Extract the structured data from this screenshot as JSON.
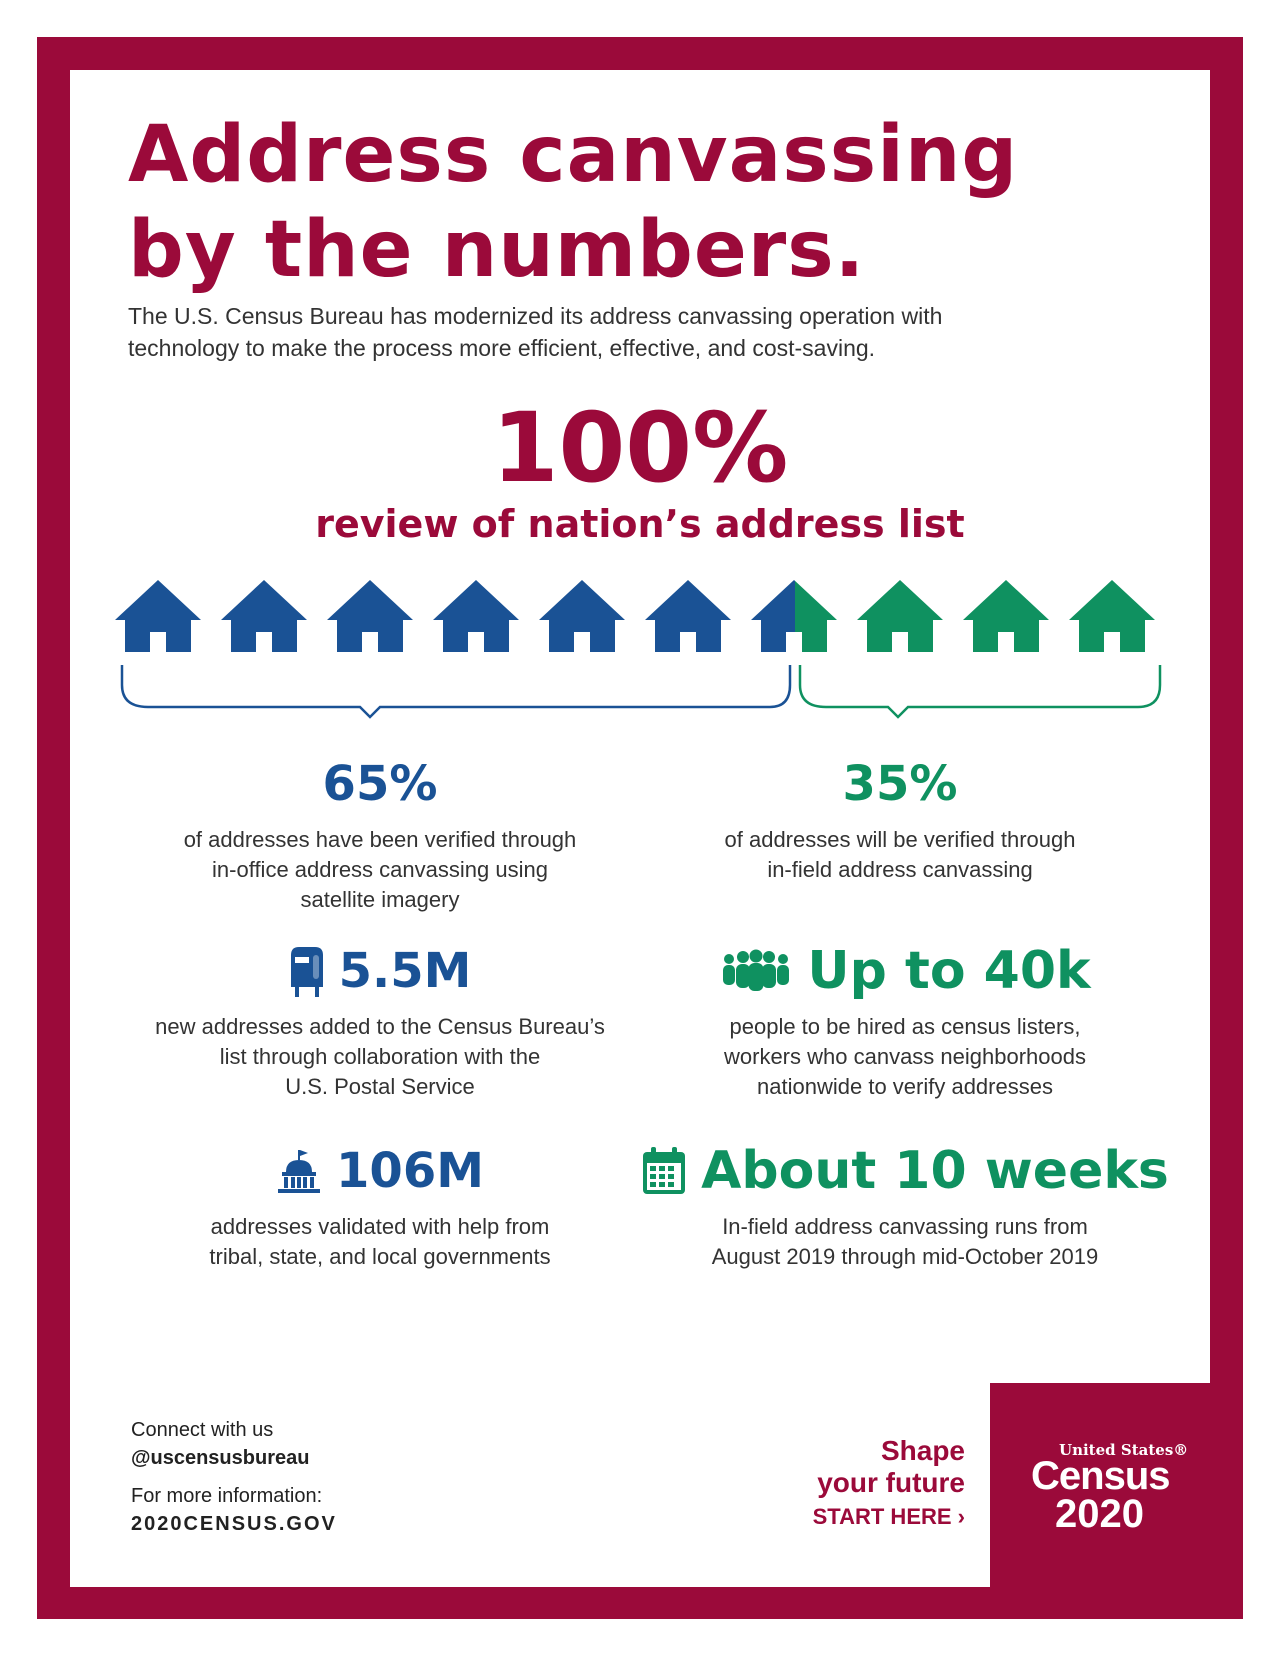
{
  "header": {
    "title_line1": "Address canvassing",
    "title_line2": "by the numbers.",
    "intro_line1": "The U.S. Census Bureau has modernized its address canvassing operation with",
    "intro_line2": "technology to make the process more efficient, effective, and cost-saving."
  },
  "hero": {
    "value": "100%",
    "caption": "review of nation’s address list"
  },
  "colors": {
    "brand": "#9b0a3a",
    "blue": "#1a5295",
    "green": "#0f9160"
  },
  "house_icons": {
    "blue": 6,
    "split": 1,
    "green": 3,
    "in_office_share": 0.65,
    "in_field_share": 0.35
  },
  "stats": {
    "in_office": {
      "value": "65%",
      "desc_line1": "of addresses have been verified through",
      "desc_line2": "in-office address canvassing using",
      "desc_line3": "satellite imagery"
    },
    "in_field": {
      "value": "35%",
      "desc_line1": "of addresses will be verified through",
      "desc_line2": "in-field address canvassing"
    },
    "new_addresses": {
      "icon": "mailbox-icon",
      "value": "5.5M",
      "desc_line1": "new addresses added to the Census Bureau’s",
      "desc_line2": "list through collaboration with the",
      "desc_line3": "U.S. Postal Service"
    },
    "hiring": {
      "icon": "people-icon",
      "value": "Up to 40k",
      "desc_line1": "people to be hired as census listers,",
      "desc_line2": "workers who canvass neighborhoods",
      "desc_line3": "nationwide to verify addresses"
    },
    "validated": {
      "icon": "capitol-building-icon",
      "value": "106M",
      "desc_line1": "addresses validated with help from",
      "desc_line2": "tribal, state, and local governments"
    },
    "duration": {
      "icon": "calendar-icon",
      "value": "About 10 weeks",
      "desc_line1": "In-field address canvassing runs from",
      "desc_line2": "August 2019 through mid-October 2019"
    }
  },
  "footer": {
    "connect": "Connect with us",
    "handle": "@uscensusbureau",
    "more_info": "For more information:",
    "website": "2020CENSUS.GOV",
    "tagline1": "Shape",
    "tagline2": "your future",
    "cta": "START HERE ›",
    "logo_top": "United States®",
    "logo_mid": "Census",
    "logo_year": "2020"
  }
}
